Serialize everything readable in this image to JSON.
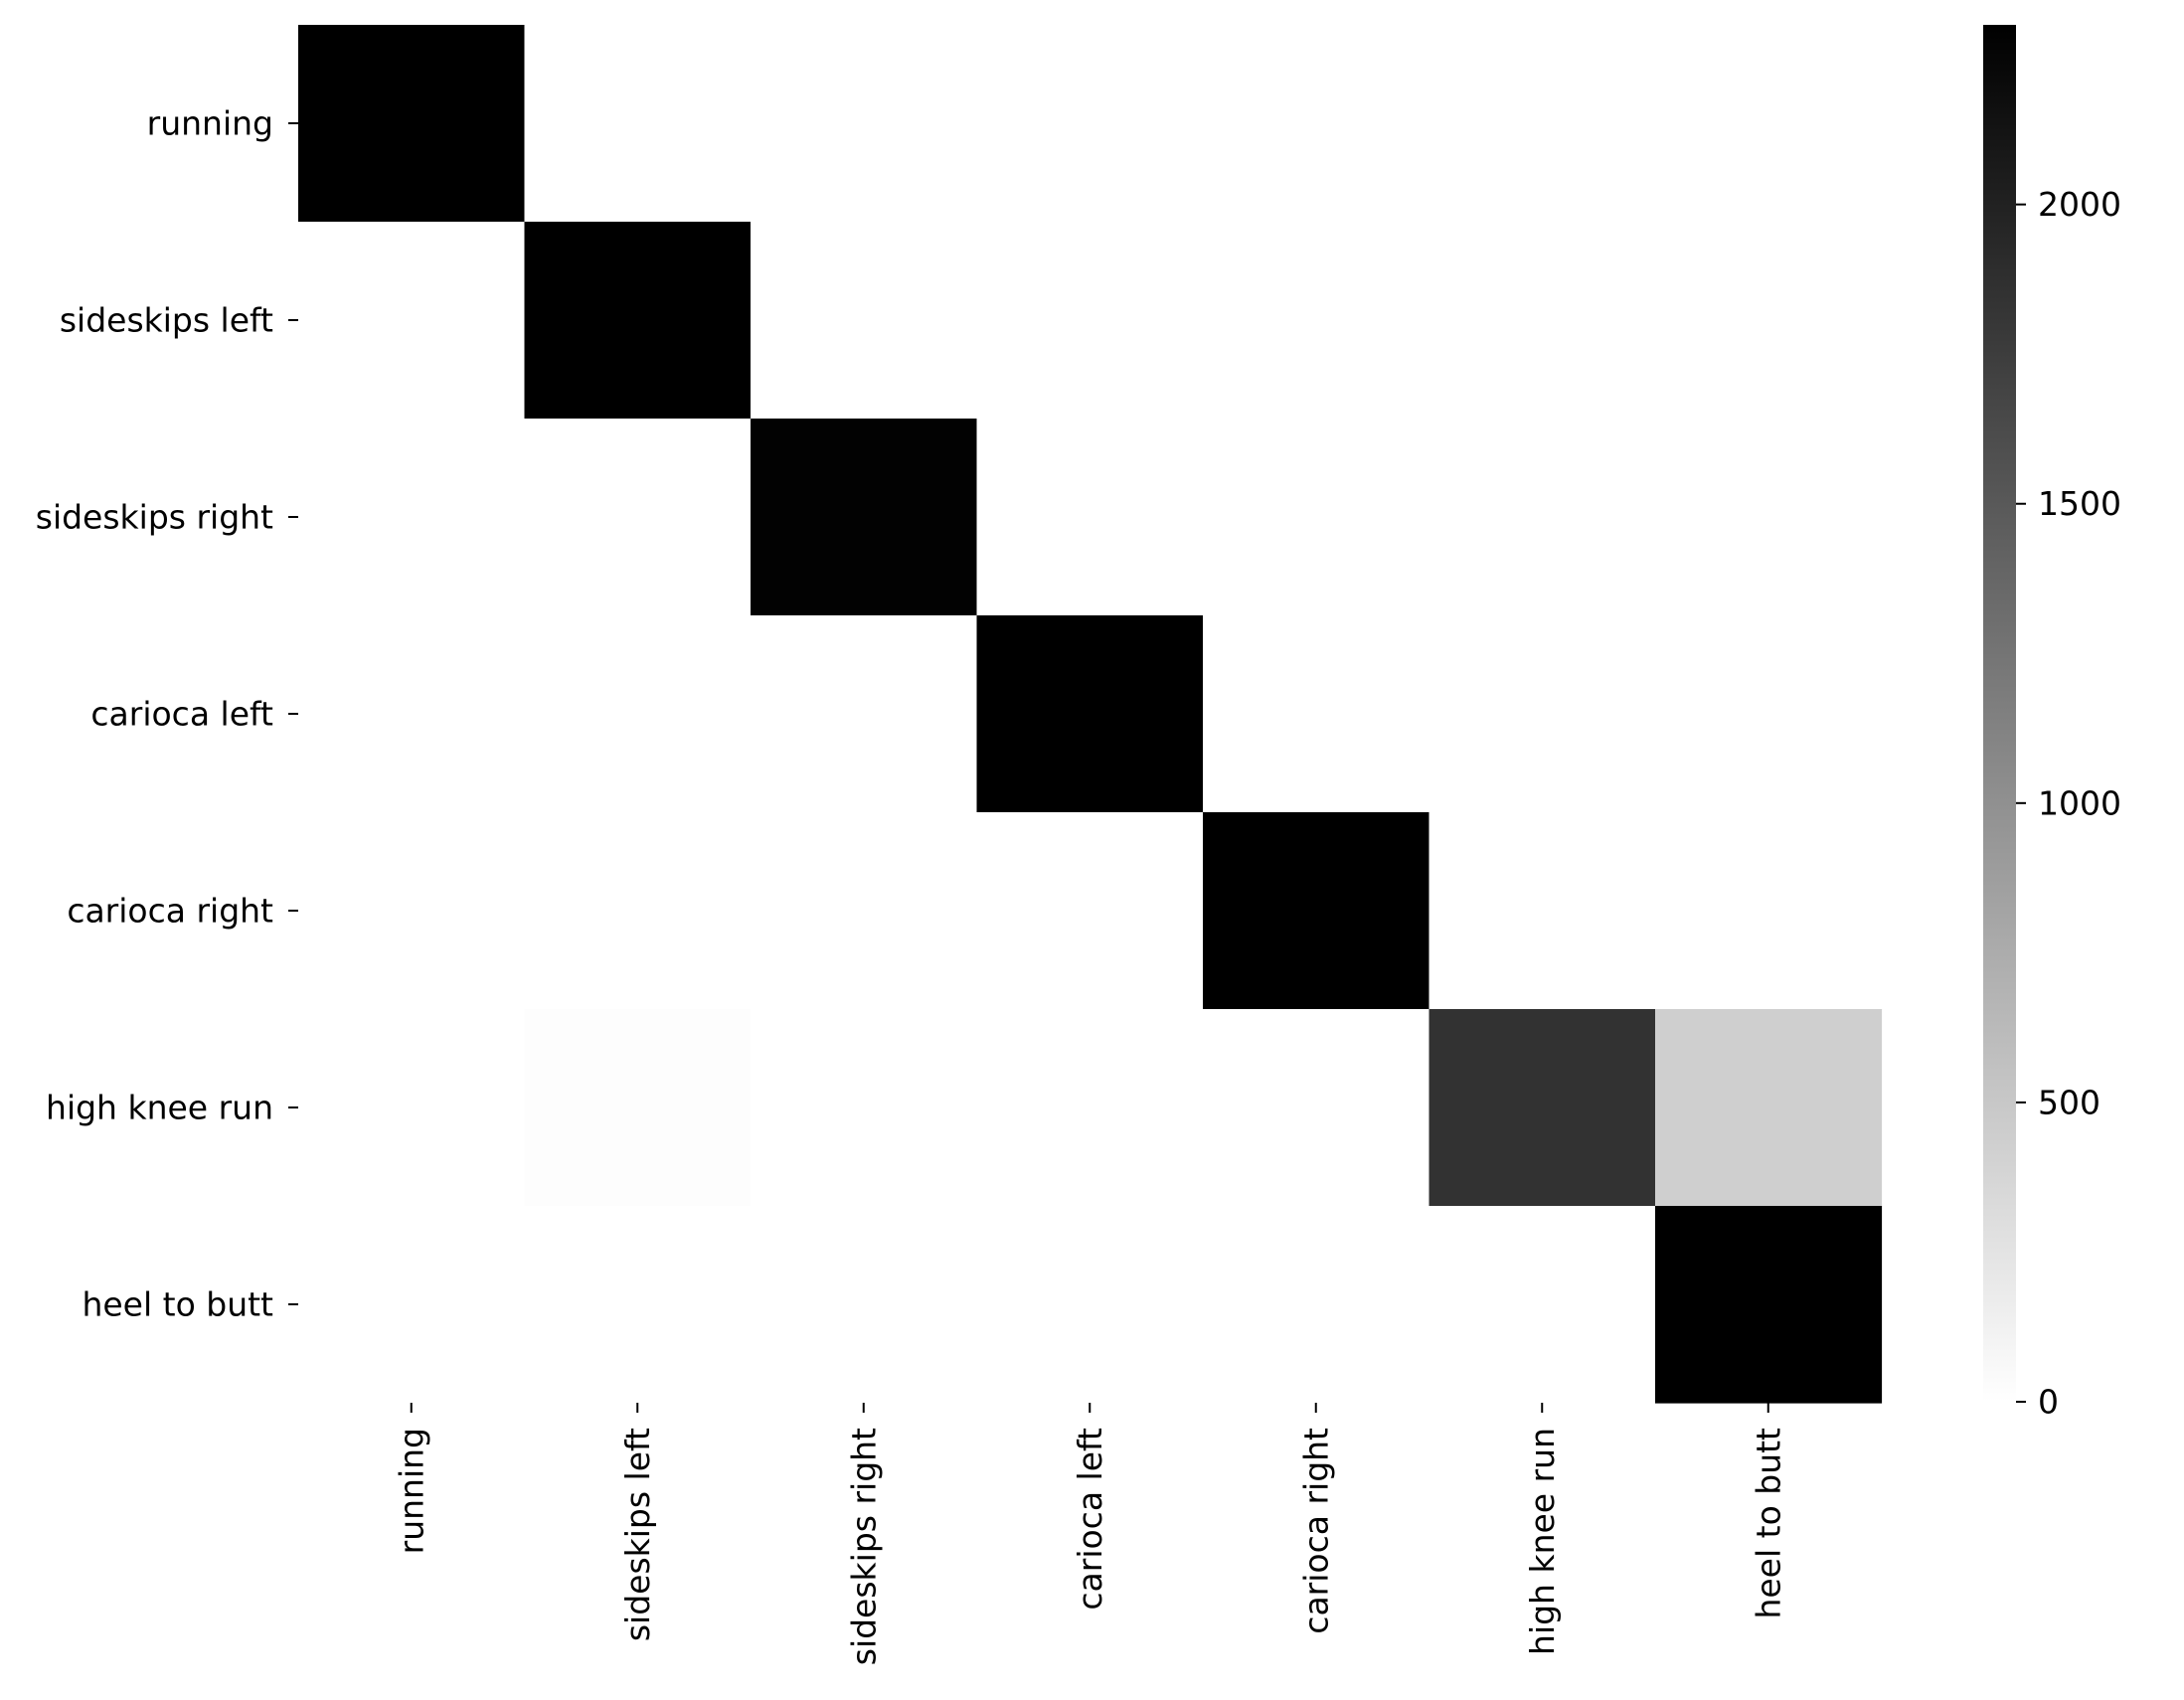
{
  "chart_data": {
    "type": "heatmap",
    "title": "",
    "xlabel": "",
    "ylabel": "",
    "rows": [
      "running",
      "sideskips left",
      "sideskips right",
      "carioca left",
      "carioca right",
      "high knee run",
      "heel to butt"
    ],
    "columns": [
      "running",
      "sideskips left",
      "sideskips right",
      "carioca left",
      "carioca right",
      "high knee run",
      "heel to butt"
    ],
    "values": [
      [
        2300,
        0,
        0,
        0,
        0,
        0,
        0
      ],
      [
        0,
        2300,
        0,
        0,
        0,
        0,
        0
      ],
      [
        0,
        0,
        2280,
        0,
        0,
        0,
        0
      ],
      [
        0,
        0,
        0,
        2300,
        0,
        0,
        0
      ],
      [
        0,
        0,
        0,
        0,
        2300,
        0,
        0
      ],
      [
        0,
        15,
        0,
        0,
        0,
        1850,
        430
      ],
      [
        0,
        0,
        0,
        0,
        0,
        0,
        2300
      ]
    ],
    "colorbar": {
      "min": 0,
      "max": 2300,
      "ticks": [
        0,
        500,
        1000,
        1500,
        2000
      ],
      "colormap": "grayscale-reversed",
      "low_color": "#ffffff",
      "high_color": "#000000"
    },
    "grid": false,
    "legend": "colorbar-right"
  }
}
